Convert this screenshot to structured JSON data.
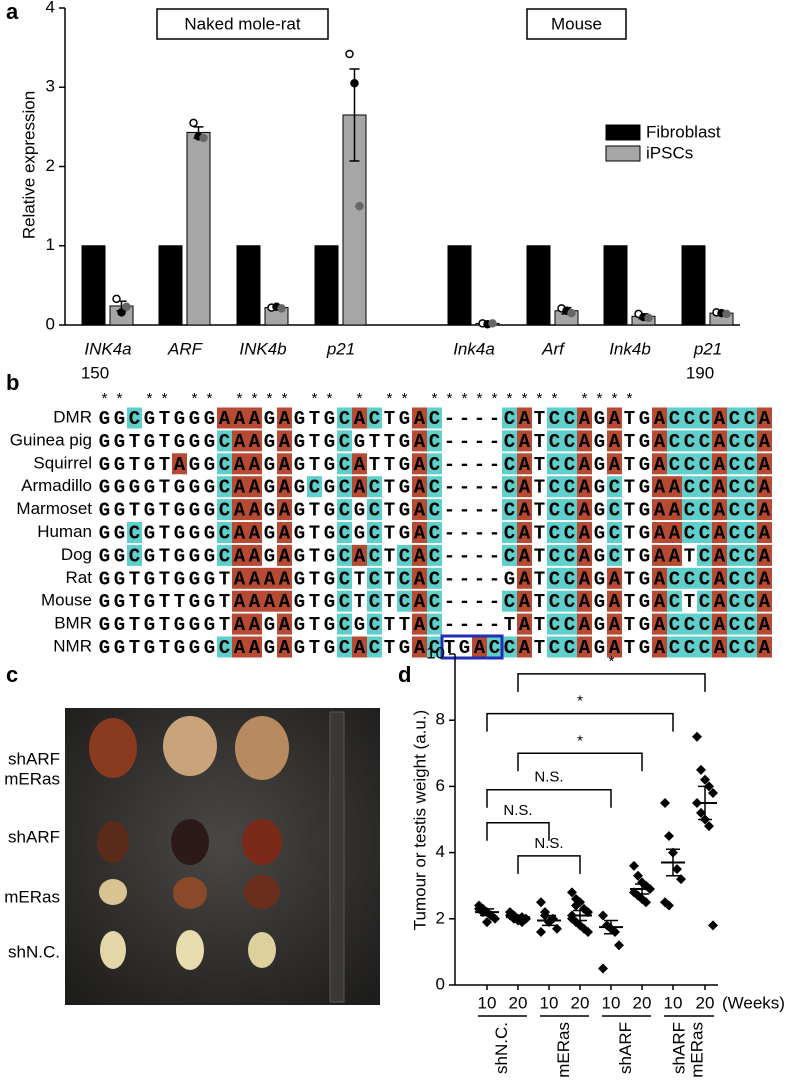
{
  "figure_labels": [
    "a",
    "b",
    "c",
    "d"
  ],
  "chart_data": [
    {
      "type": "bar",
      "categories": [
        "INK4a",
        "ARF",
        "INK4b",
        "p21",
        "Ink4a",
        "Arf",
        "Ink4b",
        "p21"
      ],
      "series": [
        {
          "name": "Fibroblast",
          "color": "#000000",
          "values": [
            1,
            1,
            1,
            1,
            1,
            1,
            1,
            1
          ]
        },
        {
          "name": "iPSCs",
          "color": "#a6a6a6",
          "values": [
            0.24,
            2.43,
            0.22,
            2.65,
            0.02,
            0.18,
            0.11,
            0.15
          ],
          "errors": [
            0.06,
            0.07,
            0.02,
            0.58,
            0.01,
            0.04,
            0.03,
            0.02
          ],
          "points": [
            [
              0.33,
              0.16,
              0.23
            ],
            [
              2.55,
              2.38,
              2.36
            ],
            [
              0.22,
              0.23,
              0.21
            ],
            [
              3.42,
              3.05,
              1.5
            ],
            [
              0.02,
              0.01,
              0.02
            ],
            [
              0.21,
              0.18,
              0.15
            ],
            [
              0.14,
              0.1,
              0.09
            ],
            [
              0.16,
              0.15,
              0.14
            ]
          ]
        }
      ],
      "ylabel": "Relative expression",
      "ylim": [
        0,
        4
      ],
      "yticks": [
        0,
        1,
        2,
        3,
        4
      ],
      "annotations": [
        "Naked mole-rat",
        "Mouse"
      ],
      "legend": "upper right"
    },
    {
      "type": "dot",
      "categories": [
        "10",
        "20",
        "10",
        "20",
        "10",
        "20",
        "10",
        "20"
      ],
      "groups": [
        [
          "shN.C."
        ],
        [
          "mERas"
        ],
        [
          "shARF"
        ],
        [
          "shARF",
          "mERas"
        ]
      ],
      "x_unit": "(Weeks)",
      "ylabel": "Tumour or testis weight (a.u.)",
      "ylim": [
        0,
        10
      ],
      "yticks": [
        0,
        2,
        4,
        6,
        8,
        10
      ],
      "points": [
        [
          2.4,
          2.3,
          2.2,
          2.1,
          2.0,
          2.3,
          2.2,
          1.9,
          2.1
        ],
        [
          2.2,
          2.1,
          2.0,
          1.9,
          2.0,
          2.1,
          2.0,
          1.95,
          2.05
        ],
        [
          2.5,
          2.1,
          1.9,
          2.0,
          1.7,
          1.6,
          2.2
        ],
        [
          2.8,
          2.6,
          2.5,
          2.3,
          2.2,
          2.0,
          1.9,
          1.8,
          1.7,
          1.6,
          2.1,
          2.4
        ],
        [
          2.1,
          1.8,
          1.7,
          1.6,
          1.2,
          0.5
        ],
        [
          3.6,
          3.3,
          3.1,
          3.0,
          2.9,
          2.8,
          2.7,
          2.6,
          2.5
        ],
        [
          5.5,
          4.5,
          4.0,
          3.5,
          3.2,
          2.5,
          2.4
        ],
        [
          7.5,
          6.5,
          6.2,
          6.0,
          5.8,
          5.5,
          5.2,
          5.0,
          4.8,
          1.8
        ]
      ],
      "means": [
        2.2,
        2.05,
        1.95,
        2.1,
        1.75,
        2.9,
        3.7,
        5.5
      ],
      "errors": [
        0.1,
        0.06,
        0.15,
        0.15,
        0.2,
        0.15,
        0.4,
        0.5
      ],
      "annotations": [
        {
          "text": "N.S.",
          "y": 3.9
        },
        {
          "text": "N.S.",
          "y": 4.9
        },
        {
          "text": "N.S.",
          "y": 5.9
        },
        {
          "text": "*",
          "y": 7.0
        },
        {
          "text": "*",
          "y": 8.2
        },
        {
          "text": "*",
          "y": 9.4
        }
      ]
    }
  ],
  "alignment": {
    "start_label": "150",
    "end_label": "190",
    "conservation": "** ** **  **** **  * **      *********   ****",
    "rows": [
      {
        "name": "DMR",
        "sequence": "GGCGTGGGAAAGAGTGCACTGAC----CATCCAGATGACCCACCA"
      },
      {
        "name": "Guinea pig",
        "sequence": "GGTGTGGGCAAGAGTGCGTTGAC----CATCCAGATGACCCACCA"
      },
      {
        "name": "Squirrel",
        "sequence": "GGTGTAGGCAAGAGTGCATTGAC----CATCCAGATGACCCACCA"
      },
      {
        "name": "Armadillo",
        "sequence": "GGGGTGGGCAAGAGCGCACTGAC----CATCCAGCTGAACCACCA"
      },
      {
        "name": "Marmoset",
        "sequence": "GGTGTGGGCAAGAGTGCGCTGAC----CATCCAGCTGAACCACCA"
      },
      {
        "name": "Human",
        "sequence": "GGCGTGGGCAAGAGTGCGCTGAC----CATCCAGCTGAACCACCA"
      },
      {
        "name": "Dog",
        "sequence": "GGCGTGGGCAAGAGTGCACTCAC----CATCCAGCTGAATCACCA"
      },
      {
        "name": "Rat",
        "sequence": "GGTGTGGGTAAAAGTGCTCTCAC----GATCCAGATGACCCACCA"
      },
      {
        "name": "Mouse",
        "sequence": "GGTGTTGGTAAAAGTGCTCTCAC----CATCCAGATGACTCACCA"
      },
      {
        "name": "BMR",
        "sequence": "GGTGTGGGTAAGAGTGCGCTTAC----TATCCAGATGACCCACCA"
      },
      {
        "name": "NMR",
        "sequence": "GGTGTGGGCAAGAGTGCACTGACTGACCATCCAGATGACCCACCA"
      }
    ]
  },
  "photo": {
    "row_labels": [
      [
        "shARF",
        "mERas"
      ],
      [
        "shARF"
      ],
      [
        "mERas"
      ],
      [
        "shN.C."
      ]
    ]
  }
}
